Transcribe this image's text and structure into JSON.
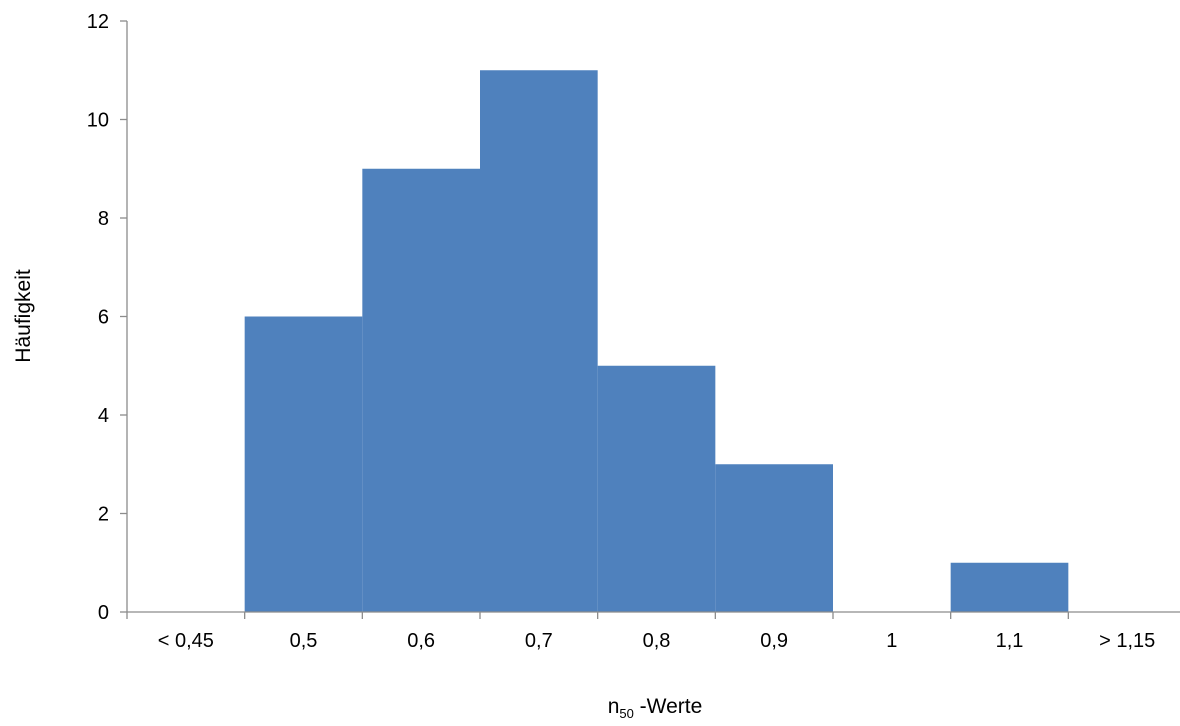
{
  "chart_data": {
    "type": "bar",
    "categories": [
      "< 0,45",
      "0,5",
      "0,6",
      "0,7",
      "0,8",
      "0,9",
      "1",
      "1,1",
      "> 1,15"
    ],
    "values": [
      0,
      6,
      9,
      11,
      5,
      3,
      0,
      1,
      0
    ],
    "title": "",
    "xlabel": "n",
    "xlabel_subscript": "50",
    "xlabel_suffix": " -Werte",
    "ylabel": "Häufigkeit",
    "ylim": [
      0,
      12
    ],
    "yticks": [
      0,
      2,
      4,
      6,
      8,
      10,
      12
    ],
    "grid": false,
    "legend": "none",
    "bar_gap": 0,
    "bar_color": "#4f81bd"
  }
}
